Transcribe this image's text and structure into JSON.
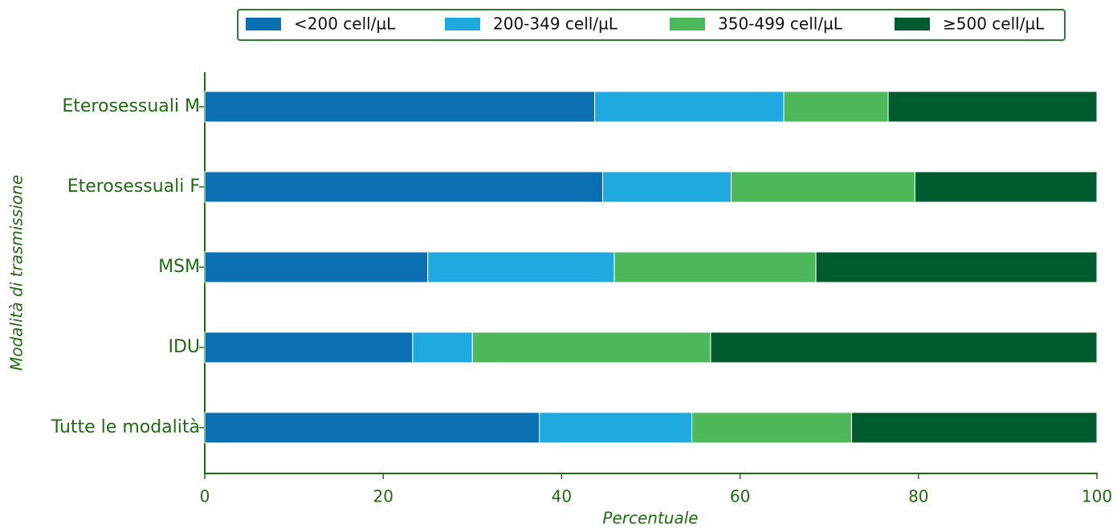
{
  "chart_data": {
    "type": "stacked-barh",
    "categories": [
      "Eterosessuali M",
      "Eterosessuali F",
      "MSM",
      "IDU",
      "Tutte le modalità"
    ],
    "series": [
      {
        "name": "<200 cell/µL",
        "color": "#0b6fb4",
        "values": [
          43.7,
          44.6,
          25.0,
          23.3,
          37.5
        ]
      },
      {
        "name": "200-349 cell/µL",
        "color": "#1fa9e1",
        "values": [
          21.2,
          14.4,
          20.9,
          6.7,
          17.1
        ]
      },
      {
        "name": "350-499 cell/µL",
        "color": "#4db85a",
        "values": [
          11.7,
          20.6,
          22.6,
          26.7,
          17.9
        ]
      },
      {
        "name": "≥500 cell/µL",
        "color": "#005c2e",
        "values": [
          23.4,
          20.4,
          31.5,
          43.3,
          27.5
        ]
      }
    ],
    "xlim": [
      0,
      100
    ],
    "xticks": [
      0,
      20,
      40,
      60,
      80,
      100
    ],
    "xlabel": "Percentuale",
    "ylabel": "Modalità di trasmissione"
  }
}
